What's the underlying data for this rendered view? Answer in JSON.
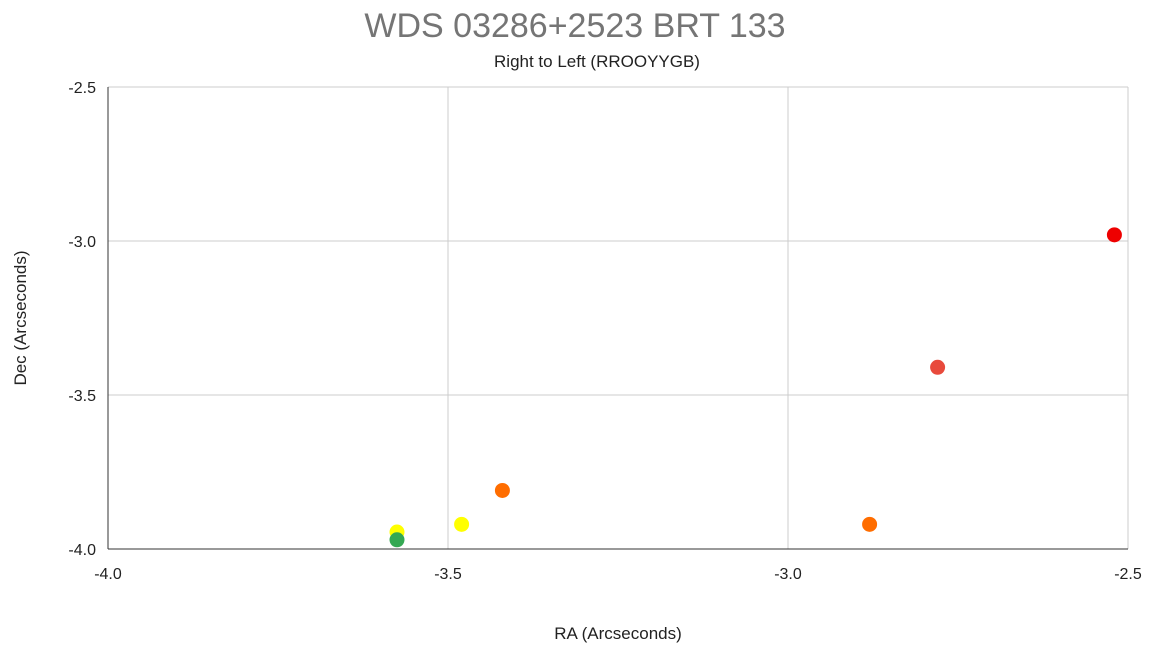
{
  "chart_data": {
    "type": "scatter",
    "title": "WDS 03286+2523 BRT 133",
    "subtitle": "Right to Left (RROOYYGB)",
    "xlabel": "RA (Arcseconds)",
    "ylabel": "Dec (Arcseconds)",
    "xlim": [
      -4.0,
      -2.5
    ],
    "ylim": [
      -4.0,
      -2.5
    ],
    "x_ticks": [
      "-4.0",
      "-3.5",
      "-3.0",
      "-2.5"
    ],
    "y_ticks": [
      "-2.5",
      "-3.0",
      "-3.5",
      "-4.0"
    ],
    "x_tick_values": [
      -4.0,
      -3.5,
      -3.0,
      -2.5
    ],
    "y_tick_values": [
      -2.5,
      -3.0,
      -3.5,
      -4.0
    ],
    "grid": true,
    "legend": "none",
    "points": [
      {
        "x": -2.52,
        "y": -2.98,
        "color": "#ee0000"
      },
      {
        "x": -2.78,
        "y": -3.41,
        "color": "#e84a3c"
      },
      {
        "x": -3.42,
        "y": -3.81,
        "color": "#ff6d00"
      },
      {
        "x": -2.88,
        "y": -3.92,
        "color": "#ff6d00"
      },
      {
        "x": -3.48,
        "y": -3.92,
        "color": "#ffff00"
      },
      {
        "x": -3.575,
        "y": -3.945,
        "color": "#ffff00"
      },
      {
        "x": -3.575,
        "y": -3.97,
        "color": "#34a853"
      }
    ]
  }
}
